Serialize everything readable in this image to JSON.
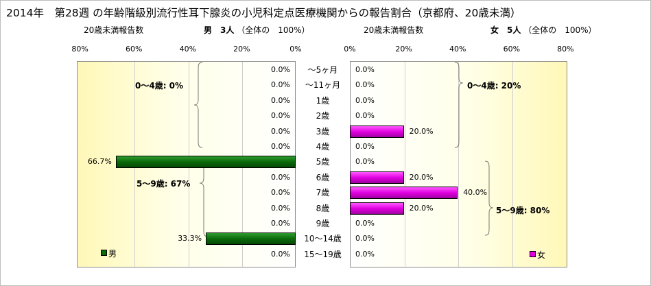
{
  "chart_data": {
    "type": "bar",
    "title": "2014年　第28週 の年齢階級別流行性耳下腺炎の小児科定点医療機関からの報告割合（京都府、20歳未満）",
    "categories": [
      "～5ヶ月",
      "～11ヶ月",
      "1歳",
      "2歳",
      "3歳",
      "4歳",
      "5歳",
      "6歳",
      "7歳",
      "8歳",
      "9歳",
      "10～14歳",
      "15～19歳"
    ],
    "male": {
      "header_label": "20歳未満報告数",
      "header_count": "男　3人",
      "header_total": "（全体の　100%）",
      "legend": "男",
      "color": "#0b6a0b",
      "axis_ticks": [
        "80%",
        "60%",
        "40%",
        "20%",
        "0%"
      ],
      "xlim": [
        0,
        80
      ],
      "values": [
        0.0,
        0.0,
        0.0,
        0.0,
        0.0,
        0.0,
        66.7,
        0.0,
        0.0,
        0.0,
        0.0,
        33.3,
        0.0
      ],
      "value_labels": [
        "0.0%",
        "0.0%",
        "0.0%",
        "0.0%",
        "0.0%",
        "0.0%",
        "66.7%",
        "0.0%",
        "0.0%",
        "0.0%",
        "0.0%",
        "33.3%",
        "0.0%"
      ],
      "groups": [
        "0～4歳: 0%",
        "5～9歳: 67%"
      ]
    },
    "female": {
      "header_label": "20歳未満報告数",
      "header_count": "女　5人",
      "header_total": "（全体の　100%）",
      "legend": "女",
      "color": "#e000e0",
      "axis_ticks": [
        "0%",
        "20%",
        "40%",
        "60%",
        "80%"
      ],
      "xlim": [
        0,
        80
      ],
      "values": [
        0.0,
        0.0,
        0.0,
        0.0,
        20.0,
        0.0,
        0.0,
        20.0,
        40.0,
        20.0,
        0.0,
        0.0,
        0.0
      ],
      "value_labels": [
        "0.0%",
        "0.0%",
        "0.0%",
        "0.0%",
        "20.0%",
        "0.0%",
        "0.0%",
        "20.0%",
        "40.0%",
        "20.0%",
        "0.0%",
        "0.0%",
        "0.0%"
      ],
      "groups": [
        "0～4歳: 20%",
        "5～9歳: 80%"
      ]
    }
  }
}
